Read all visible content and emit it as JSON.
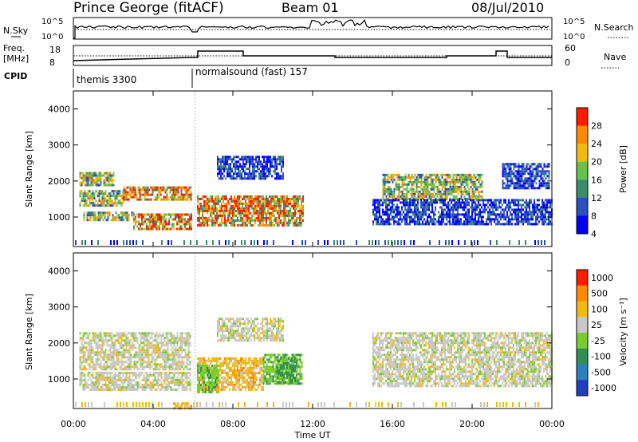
{
  "header": {
    "station": "Prince George (fitACF)",
    "beam": "Beam 01",
    "date": "08/Jul/2010"
  },
  "strip": {
    "left_top_label": "N.Sky",
    "left_top_ticks": [
      "10^5",
      "10^0"
    ],
    "right_top_label": "N.Search",
    "right_top_ticks": [
      "10^5",
      "10^0"
    ],
    "freq_label": "Freq.",
    "freq_unit": "[MHz]",
    "freq_ticks": [
      "18",
      "8"
    ],
    "nave_label": "Nave",
    "nave_ticks": [
      "60",
      "0"
    ],
    "cpid_label": "CPID",
    "cpid_segments": [
      {
        "start_hour": 0.0,
        "label": "themis 3300"
      },
      {
        "start_hour": 6.1,
        "label": "normalsound (fast) 157"
      }
    ]
  },
  "chart_data": [
    {
      "type": "heatmap",
      "title": "Power",
      "xlabel": "Time UT",
      "ylabel": "Slant Range [km]",
      "xlim": [
        0,
        24
      ],
      "ylim": [
        180,
        4500
      ],
      "x_ticks": [
        "00:00",
        "04:00",
        "08:00",
        "12:00",
        "16:00",
        "20:00",
        "00:00"
      ],
      "y_ticks": [
        1000,
        2000,
        3000,
        4000
      ],
      "colorbar": {
        "label": "Power [dB]",
        "ticks": [
          4,
          8,
          12,
          16,
          20,
          24,
          28
        ],
        "colors": [
          "#0000ff",
          "#2a4fbf",
          "#3b8c6e",
          "#66c24a",
          "#f2b90f",
          "#ff8a00",
          "#ff1a00"
        ]
      },
      "bands": [
        {
          "t0": 0.3,
          "t1": 2.0,
          "r0": 1900,
          "r1": 2250,
          "level": "mid"
        },
        {
          "t0": 0.3,
          "t1": 2.5,
          "r0": 1350,
          "r1": 1750,
          "level": "mid"
        },
        {
          "t0": 2.5,
          "t1": 5.9,
          "r0": 1500,
          "r1": 1850,
          "level": "high"
        },
        {
          "t0": 0.5,
          "t1": 3.0,
          "r0": 900,
          "r1": 1150,
          "level": "mid"
        },
        {
          "t0": 3.0,
          "t1": 5.9,
          "r0": 700,
          "r1": 1100,
          "level": "high"
        },
        {
          "t0": 6.2,
          "t1": 11.5,
          "r0": 800,
          "r1": 1600,
          "level": "high"
        },
        {
          "t0": 7.2,
          "t1": 10.5,
          "r0": 2100,
          "r1": 2700,
          "level": "low"
        },
        {
          "t0": 15.5,
          "t1": 20.5,
          "r0": 1500,
          "r1": 2200,
          "level": "mid"
        },
        {
          "t0": 15.0,
          "t1": 24.0,
          "r0": 800,
          "r1": 1500,
          "level": "low"
        },
        {
          "t0": 21.5,
          "t1": 23.9,
          "r0": 1800,
          "r1": 2500,
          "level": "low"
        }
      ]
    },
    {
      "type": "heatmap",
      "title": "Velocity",
      "xlabel": "Time UT",
      "ylabel": "Slant Range [km]",
      "xlim": [
        0,
        24
      ],
      "ylim": [
        180,
        4500
      ],
      "x_ticks": [
        "00:00",
        "04:00",
        "08:00",
        "12:00",
        "16:00",
        "20:00",
        "00:00"
      ],
      "y_ticks": [
        1000,
        2000,
        3000,
        4000
      ],
      "colorbar": {
        "label": "Velocity [m s⁻¹]",
        "ticks": [
          "1000",
          "500",
          "100",
          "25",
          "-25",
          "-100",
          "-500",
          "-1000"
        ],
        "colors": [
          "#1f3fbf",
          "#2c80c0",
          "#2f8f57",
          "#7acc2e",
          "#c8c8c8",
          "#f2b90f",
          "#ff8a00",
          "#ff1a00"
        ]
      },
      "bands": [
        {
          "t0": 0.3,
          "t1": 5.9,
          "r0": 1300,
          "r1": 2300,
          "level": "grey"
        },
        {
          "t0": 0.3,
          "t1": 5.9,
          "r0": 700,
          "r1": 1200,
          "level": "grey"
        },
        {
          "t0": 5.0,
          "t1": 5.9,
          "r0": 200,
          "r1": 350,
          "level": "orange"
        },
        {
          "t0": 6.2,
          "t1": 9.5,
          "r0": 700,
          "r1": 1600,
          "level": "orange"
        },
        {
          "t0": 6.2,
          "t1": 7.3,
          "r0": 650,
          "r1": 1400,
          "level": "green"
        },
        {
          "t0": 9.5,
          "t1": 11.5,
          "r0": 900,
          "r1": 1700,
          "level": "green"
        },
        {
          "t0": 10.2,
          "t1": 11.2,
          "r0": 900,
          "r1": 1600,
          "level": "darkgreen"
        },
        {
          "t0": 7.2,
          "t1": 10.5,
          "r0": 2100,
          "r1": 2700,
          "level": "grey"
        },
        {
          "t0": 15.0,
          "t1": 24.0,
          "r0": 800,
          "r1": 2300,
          "level": "grey"
        }
      ]
    }
  ]
}
